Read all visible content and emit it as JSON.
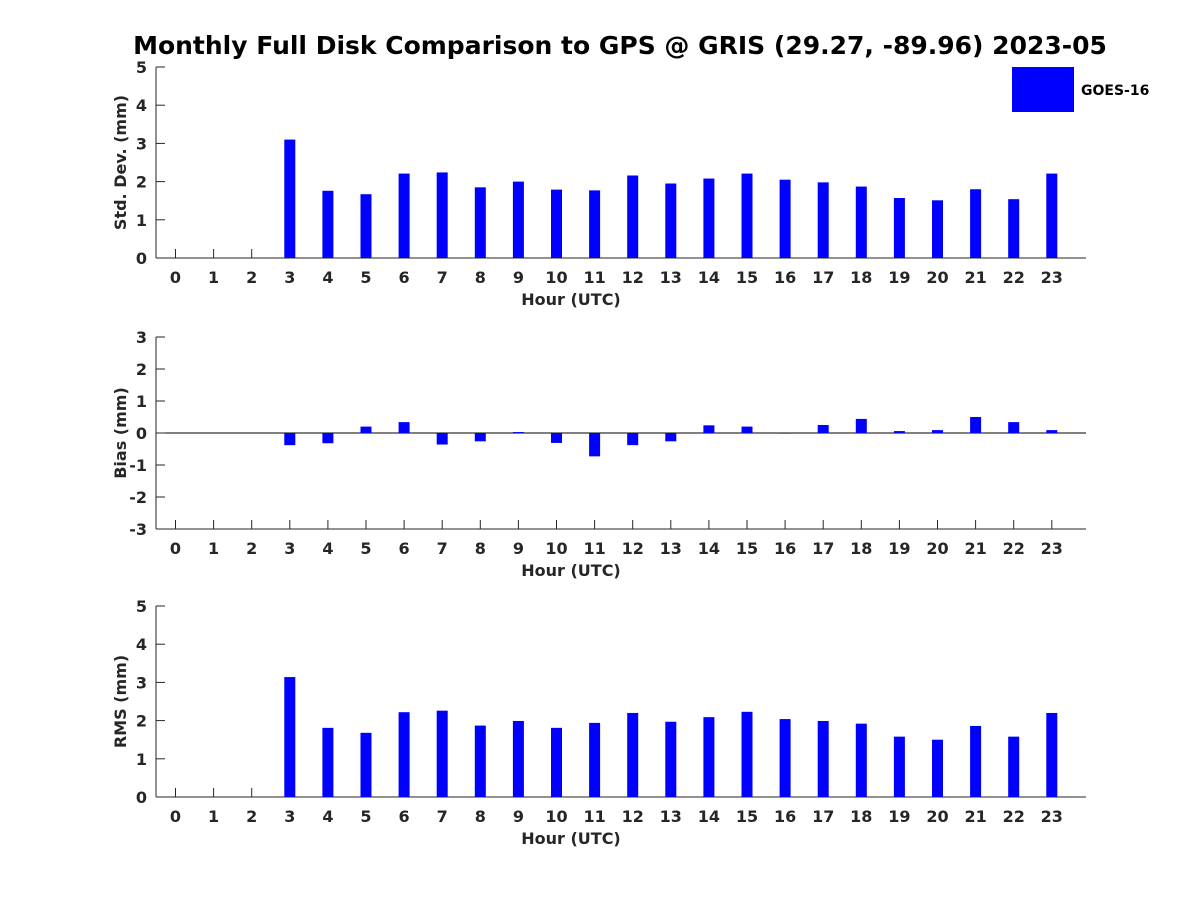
{
  "title": "Monthly Full Disk Comparison to GPS @ GRIS (29.27, -89.96) 2023-05",
  "legend": {
    "label": "GOES-16",
    "color": "#0000ff",
    "position": "top-right"
  },
  "chart_data": [
    {
      "type": "bar",
      "ylabel": "Std. Dev. (mm)",
      "xlabel": "Hour (UTC)",
      "ylim": [
        0,
        5
      ],
      "yticks": [
        0,
        1,
        2,
        3,
        4,
        5
      ],
      "categories": [
        0,
        1,
        2,
        3,
        4,
        5,
        6,
        7,
        8,
        9,
        10,
        11,
        12,
        13,
        14,
        15,
        16,
        17,
        18,
        19,
        20,
        21,
        22,
        23
      ],
      "series": [
        {
          "name": "GOES-16",
          "values": [
            null,
            null,
            null,
            3.1,
            1.76,
            1.67,
            2.21,
            2.24,
            1.85,
            2.0,
            1.79,
            1.77,
            2.16,
            1.95,
            2.08,
            2.21,
            2.05,
            1.98,
            1.87,
            1.57,
            1.51,
            1.8,
            1.54,
            2.21
          ]
        }
      ],
      "grid": false
    },
    {
      "type": "bar",
      "ylabel": "Bias (mm)",
      "xlabel": "Hour (UTC)",
      "ylim": [
        -3,
        3
      ],
      "yticks": [
        -3,
        -2,
        -1,
        0,
        1,
        2,
        3
      ],
      "categories": [
        0,
        1,
        2,
        3,
        4,
        5,
        6,
        7,
        8,
        9,
        10,
        11,
        12,
        13,
        14,
        15,
        16,
        17,
        18,
        19,
        20,
        21,
        22,
        23
      ],
      "series": [
        {
          "name": "GOES-16",
          "values": [
            null,
            null,
            null,
            -0.38,
            -0.32,
            0.2,
            0.34,
            -0.36,
            -0.26,
            0.03,
            -0.31,
            -0.73,
            -0.38,
            -0.26,
            0.24,
            0.2,
            -0.02,
            0.25,
            0.44,
            0.06,
            0.09,
            0.5,
            0.34,
            0.09
          ]
        }
      ],
      "grid": false
    },
    {
      "type": "bar",
      "ylabel": "RMS (mm)",
      "xlabel": "Hour (UTC)",
      "ylim": [
        0,
        5
      ],
      "yticks": [
        0,
        1,
        2,
        3,
        4,
        5
      ],
      "categories": [
        0,
        1,
        2,
        3,
        4,
        5,
        6,
        7,
        8,
        9,
        10,
        11,
        12,
        13,
        14,
        15,
        16,
        17,
        18,
        19,
        20,
        21,
        22,
        23
      ],
      "series": [
        {
          "name": "GOES-16",
          "values": [
            null,
            null,
            null,
            3.14,
            1.81,
            1.68,
            2.22,
            2.26,
            1.87,
            1.99,
            1.81,
            1.94,
            2.2,
            1.97,
            2.09,
            2.23,
            2.04,
            1.99,
            1.92,
            1.58,
            1.5,
            1.86,
            1.58,
            2.2
          ]
        }
      ],
      "grid": false
    }
  ]
}
